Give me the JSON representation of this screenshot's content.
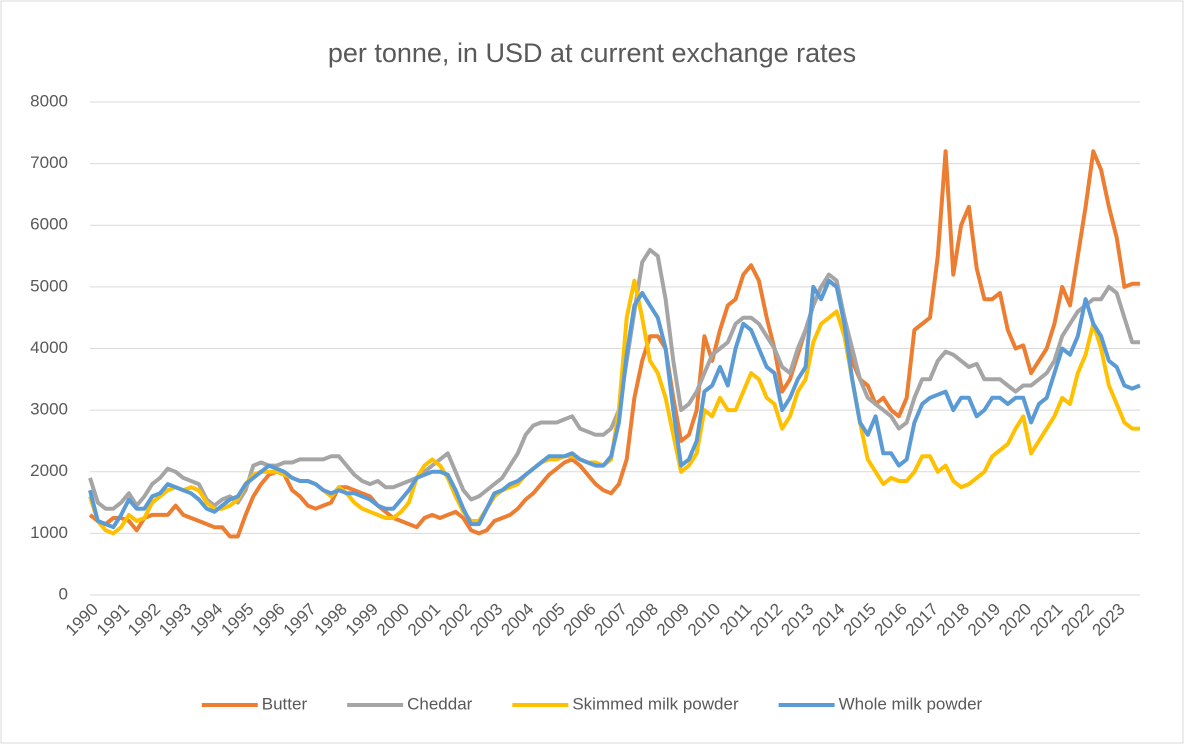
{
  "chart_data": {
    "type": "line",
    "title": "per tonne, in USD at current exchange rates",
    "categories": [
      "1990",
      null,
      null,
      null,
      "1991",
      null,
      null,
      null,
      "1992",
      null,
      null,
      null,
      "1993",
      null,
      null,
      null,
      "1994",
      null,
      null,
      null,
      "1995",
      null,
      null,
      null,
      "1996",
      null,
      null,
      null,
      "1997",
      null,
      null,
      null,
      "1998",
      null,
      null,
      null,
      "1999",
      null,
      null,
      null,
      "2000",
      null,
      null,
      null,
      "2001",
      null,
      null,
      null,
      "2002",
      null,
      null,
      null,
      "2003",
      null,
      null,
      null,
      "2004",
      null,
      null,
      null,
      "2005",
      null,
      null,
      null,
      "2006",
      null,
      null,
      null,
      "2007",
      null,
      null,
      null,
      "2008",
      null,
      null,
      null,
      "2009",
      null,
      null,
      null,
      "2010",
      null,
      null,
      null,
      "2011",
      null,
      null,
      null,
      "2012",
      null,
      null,
      null,
      "2013",
      null,
      null,
      null,
      "2014",
      null,
      null,
      null,
      "2015",
      null,
      null,
      null,
      "2016",
      null,
      null,
      null,
      "2017",
      null,
      null,
      null,
      "2018",
      null,
      null,
      null,
      "2019",
      null,
      null,
      null,
      "2020",
      null,
      null,
      null,
      "2021",
      null,
      null,
      null,
      "2022",
      null,
      null,
      null,
      "2023",
      null,
      null,
      null
    ],
    "series": [
      {
        "name": "Butter",
        "color": "#ed7d31",
        "values": [
          1300,
          1200,
          1150,
          1250,
          1250,
          1200,
          1050,
          1250,
          1300,
          1300,
          1300,
          1450,
          1300,
          1250,
          1200,
          1150,
          1100,
          1100,
          950,
          950,
          1300,
          1600,
          1800,
          1950,
          2000,
          1950,
          1700,
          1600,
          1450,
          1400,
          1450,
          1500,
          1750,
          1750,
          1700,
          1650,
          1600,
          1450,
          1350,
          1250,
          1200,
          1150,
          1100,
          1250,
          1300,
          1250,
          1300,
          1350,
          1250,
          1050,
          1000,
          1050,
          1200,
          1250,
          1300,
          1400,
          1550,
          1650,
          1800,
          1950,
          2050,
          2150,
          2200,
          2100,
          1950,
          1800,
          1700,
          1650,
          1800,
          2200,
          3200,
          3800,
          4200,
          4200,
          4000,
          3200,
          2500,
          2600,
          3000,
          4200,
          3800,
          4300,
          4700,
          4800,
          5200,
          5350,
          5100,
          4500,
          4000,
          3300,
          3500,
          3900,
          4300,
          4700,
          5000,
          5100,
          5000,
          4500,
          3800,
          3500,
          3400,
          3100,
          3200,
          3000,
          2900,
          3200,
          4300,
          4400,
          4500,
          5500,
          7200,
          5200,
          6000,
          6300,
          5300,
          4800,
          4800,
          4900,
          4300,
          4000,
          4050,
          3600,
          3800,
          4000,
          4400,
          5000,
          4700,
          5500,
          6300,
          7200,
          6900,
          6300,
          5800,
          5000,
          5050,
          5050
        ]
      },
      {
        "name": "Cheddar",
        "color": "#a5a5a5",
        "values": [
          1900,
          1500,
          1400,
          1400,
          1500,
          1650,
          1450,
          1600,
          1800,
          1900,
          2050,
          2000,
          1900,
          1850,
          1800,
          1550,
          1450,
          1550,
          1600,
          1500,
          1700,
          2100,
          2150,
          2100,
          2100,
          2150,
          2150,
          2200,
          2200,
          2200,
          2200,
          2250,
          2250,
          2100,
          1950,
          1850,
          1800,
          1850,
          1750,
          1750,
          1800,
          1850,
          1900,
          2000,
          2100,
          2200,
          2300,
          2000,
          1700,
          1550,
          1600,
          1700,
          1800,
          1900,
          2100,
          2300,
          2600,
          2750,
          2800,
          2800,
          2800,
          2850,
          2900,
          2700,
          2650,
          2600,
          2600,
          2700,
          3000,
          3800,
          4600,
          5400,
          5600,
          5500,
          4800,
          3800,
          3000,
          3100,
          3300,
          3600,
          3900,
          4000,
          4100,
          4400,
          4500,
          4500,
          4400,
          4200,
          4000,
          3700,
          3600,
          4000,
          4300,
          4700,
          5000,
          5200,
          5100,
          4500,
          4000,
          3500,
          3200,
          3100,
          3000,
          2900,
          2700,
          2800,
          3200,
          3500,
          3500,
          3800,
          3950,
          3900,
          3800,
          3700,
          3750,
          3500,
          3500,
          3500,
          3400,
          3300,
          3400,
          3400,
          3500,
          3600,
          3800,
          4200,
          4400,
          4600,
          4700,
          4800,
          4800,
          5000,
          4900,
          4500,
          4100,
          4100
        ]
      },
      {
        "name": "Skimmed milk powder",
        "color": "#ffc000",
        "values": [
          1600,
          1200,
          1050,
          1000,
          1100,
          1300,
          1200,
          1250,
          1500,
          1600,
          1700,
          1750,
          1700,
          1750,
          1700,
          1500,
          1400,
          1400,
          1450,
          1550,
          1800,
          1950,
          2000,
          2000,
          2000,
          1950,
          1900,
          1850,
          1850,
          1800,
          1700,
          1600,
          1750,
          1650,
          1500,
          1400,
          1350,
          1300,
          1250,
          1250,
          1350,
          1500,
          1900,
          2100,
          2200,
          2100,
          1900,
          1600,
          1350,
          1200,
          1200,
          1400,
          1600,
          1700,
          1750,
          1800,
          1950,
          2050,
          2150,
          2200,
          2200,
          2250,
          2250,
          2200,
          2150,
          2150,
          2100,
          2200,
          3000,
          4500,
          5100,
          4500,
          3800,
          3600,
          3200,
          2600,
          2000,
          2100,
          2300,
          3000,
          2900,
          3200,
          3000,
          3000,
          3300,
          3600,
          3500,
          3200,
          3100,
          2700,
          2900,
          3300,
          3500,
          4100,
          4400,
          4500,
          4600,
          4200,
          3500,
          2800,
          2200,
          2000,
          1800,
          1900,
          1850,
          1850,
          2000,
          2250,
          2250,
          2000,
          2100,
          1850,
          1750,
          1800,
          1900,
          2000,
          2250,
          2350,
          2450,
          2700,
          2900,
          2300,
          2500,
          2700,
          2900,
          3200,
          3100,
          3600,
          3900,
          4400,
          4000,
          3400,
          3100,
          2800,
          2700,
          2700
        ]
      },
      {
        "name": "Whole milk powder",
        "color": "#5b9bd5",
        "values": [
          1700,
          1200,
          1150,
          1100,
          1300,
          1550,
          1400,
          1400,
          1600,
          1650,
          1800,
          1750,
          1700,
          1650,
          1550,
          1400,
          1350,
          1450,
          1550,
          1600,
          1800,
          1900,
          2000,
          2100,
          2050,
          2000,
          1900,
          1850,
          1850,
          1800,
          1700,
          1650,
          1700,
          1650,
          1650,
          1600,
          1550,
          1450,
          1400,
          1400,
          1550,
          1700,
          1900,
          1950,
          2000,
          2000,
          1950,
          1700,
          1400,
          1150,
          1150,
          1400,
          1650,
          1700,
          1800,
          1850,
          1950,
          2050,
          2150,
          2250,
          2250,
          2250,
          2300,
          2200,
          2150,
          2100,
          2100,
          2250,
          2800,
          3900,
          4700,
          4900,
          4700,
          4500,
          4000,
          3000,
          2100,
          2200,
          2500,
          3300,
          3400,
          3700,
          3400,
          4000,
          4400,
          4300,
          4000,
          3700,
          3600,
          3000,
          3200,
          3500,
          3700,
          5000,
          4800,
          5100,
          5000,
          4400,
          3500,
          2800,
          2600,
          2900,
          2300,
          2300,
          2100,
          2200,
          2800,
          3100,
          3200,
          3250,
          3300,
          3000,
          3200,
          3200,
          2900,
          3000,
          3200,
          3200,
          3100,
          3200,
          3200,
          2800,
          3100,
          3200,
          3600,
          4000,
          3900,
          4200,
          4800,
          4400,
          4200,
          3800,
          3700,
          3400,
          3350,
          3400
        ]
      }
    ],
    "ylim": [
      0,
      8000
    ],
    "yticks": [
      0,
      1000,
      2000,
      3000,
      4000,
      5000,
      6000,
      7000,
      8000
    ],
    "grid": true
  }
}
